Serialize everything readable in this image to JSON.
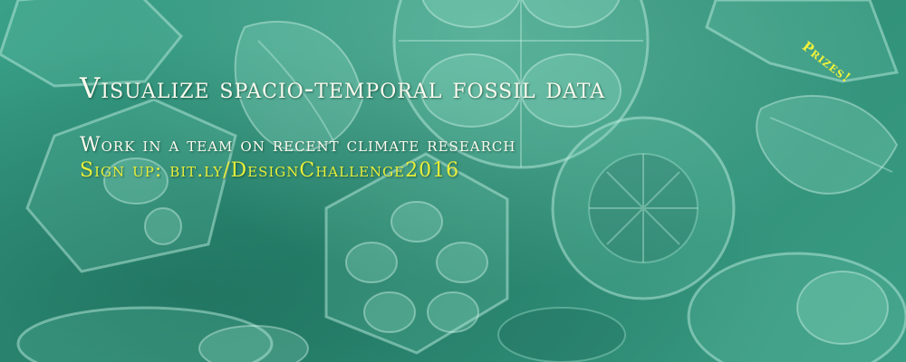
{
  "banner": {
    "headline": "Visualize spacio-temporal fossil data",
    "subline": "Work in a team on recent climate research",
    "signup": "Sign up:  bit.ly/DesignChallenge2016",
    "badge": "Prizes!"
  },
  "colors": {
    "background": "#2f8f78",
    "headline_text": "#fbfbee",
    "signup_text": "#e8ef3a",
    "badge_text": "#f1f23a"
  }
}
